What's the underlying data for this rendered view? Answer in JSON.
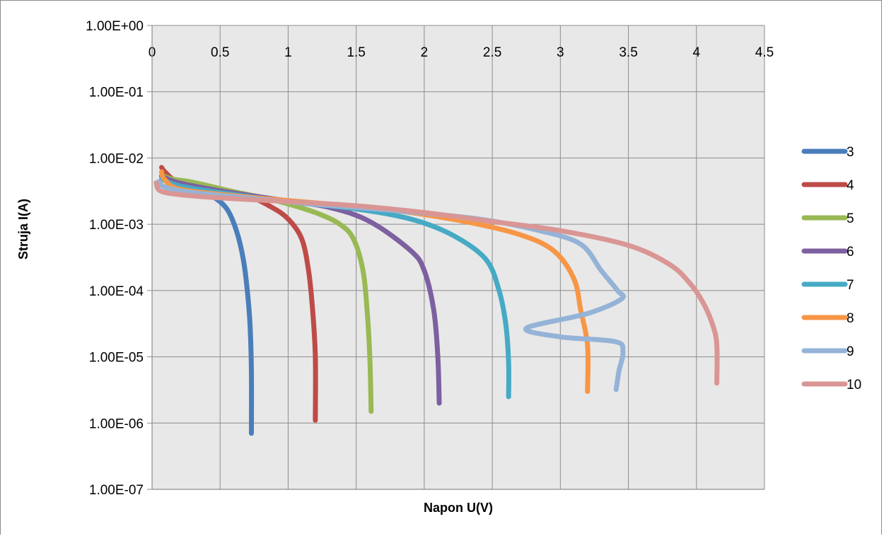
{
  "chart_data": {
    "type": "line",
    "title": "",
    "xlabel": "Napon U(V)",
    "ylabel": "Struja I(A)",
    "x_scale": "linear",
    "y_scale": "log",
    "xlim": [
      0,
      4.5
    ],
    "ylim": [
      1e-07,
      1
    ],
    "x_ticks": [
      "0",
      "0.5",
      "1",
      "1.5",
      "2",
      "2.5",
      "3",
      "3.5",
      "4",
      "4.5"
    ],
    "y_ticks": [
      "1.00E+00",
      "1.00E-01",
      "1.00E-02",
      "1.00E-03",
      "1.00E-04",
      "1.00E-05",
      "1.00E-06",
      "1.00E-07"
    ],
    "grid": true,
    "legend_position": "right",
    "series": [
      {
        "name": "3",
        "color": "#4a7ebb",
        "points": [
          [
            0.08,
            0.0058
          ],
          [
            0.1,
            0.0048
          ],
          [
            0.2,
            0.0038
          ],
          [
            0.35,
            0.0033
          ],
          [
            0.45,
            0.0026
          ],
          [
            0.55,
            0.0017
          ],
          [
            0.62,
            0.0008
          ],
          [
            0.67,
            0.0003
          ],
          [
            0.7,
            0.0001
          ],
          [
            0.72,
            3e-05
          ],
          [
            0.73,
            6e-06
          ],
          [
            0.73,
            7e-07
          ]
        ]
      },
      {
        "name": "4",
        "color": "#be4b48",
        "points": [
          [
            0.07,
            0.0072
          ],
          [
            0.1,
            0.006
          ],
          [
            0.2,
            0.0043
          ],
          [
            0.45,
            0.0035
          ],
          [
            0.7,
            0.0027
          ],
          [
            0.88,
            0.0018
          ],
          [
            1.0,
            0.0012
          ],
          [
            1.1,
            0.0006
          ],
          [
            1.15,
            0.0002
          ],
          [
            1.18,
            5e-05
          ],
          [
            1.2,
            1e-05
          ],
          [
            1.2,
            1.1e-06
          ]
        ]
      },
      {
        "name": "5",
        "color": "#98b954",
        "points": [
          [
            0.07,
            0.0055
          ],
          [
            0.15,
            0.0048
          ],
          [
            0.3,
            0.0043
          ],
          [
            0.6,
            0.0031
          ],
          [
            0.9,
            0.0023
          ],
          [
            1.2,
            0.0015
          ],
          [
            1.38,
            0.001
          ],
          [
            1.48,
            0.0006
          ],
          [
            1.55,
            0.0002
          ],
          [
            1.58,
            5e-05
          ],
          [
            1.6,
            1e-05
          ],
          [
            1.61,
            1.5e-06
          ]
        ]
      },
      {
        "name": "6",
        "color": "#7d60a0",
        "points": [
          [
            0.07,
            0.0053
          ],
          [
            0.2,
            0.0042
          ],
          [
            0.5,
            0.0032
          ],
          [
            0.9,
            0.0024
          ],
          [
            1.3,
            0.0018
          ],
          [
            1.6,
            0.0011
          ],
          [
            1.9,
            0.0004
          ],
          [
            2.0,
            0.0002
          ],
          [
            2.07,
            5e-05
          ],
          [
            2.1,
            1e-05
          ],
          [
            2.11,
            2e-06
          ]
        ]
      },
      {
        "name": "7",
        "color": "#46aac5",
        "points": [
          [
            0.07,
            0.0048
          ],
          [
            0.2,
            0.0038
          ],
          [
            0.5,
            0.003
          ],
          [
            1.0,
            0.0022
          ],
          [
            1.5,
            0.0017
          ],
          [
            1.9,
            0.0012
          ],
          [
            2.2,
            0.0007
          ],
          [
            2.45,
            0.0003
          ],
          [
            2.55,
            0.0001
          ],
          [
            2.6,
            3e-05
          ],
          [
            2.62,
            8e-06
          ],
          [
            2.62,
            2.5e-06
          ]
        ]
      },
      {
        "name": "8",
        "color": "#f79646",
        "points": [
          [
            0.07,
            0.0062
          ],
          [
            0.09,
            0.0048
          ],
          [
            0.2,
            0.0034
          ],
          [
            0.6,
            0.0027
          ],
          [
            1.2,
            0.0021
          ],
          [
            1.8,
            0.0016
          ],
          [
            2.3,
            0.0011
          ],
          [
            2.7,
            0.0007
          ],
          [
            2.95,
            0.0004
          ],
          [
            3.1,
            0.00015
          ],
          [
            3.15,
            5e-05
          ],
          [
            3.2,
            1.5e-05
          ],
          [
            3.2,
            3e-06
          ]
        ]
      },
      {
        "name": "9",
        "color": "#95b3d7",
        "points": [
          [
            0.05,
            0.0044
          ],
          [
            0.1,
            0.0036
          ],
          [
            0.3,
            0.003
          ],
          [
            0.7,
            0.0025
          ],
          [
            1.2,
            0.002
          ],
          [
            1.8,
            0.0016
          ],
          [
            2.4,
            0.0012
          ],
          [
            2.85,
            0.0008
          ],
          [
            3.15,
            0.0005
          ],
          [
            3.3,
            0.0002
          ],
          [
            3.42,
            0.0001
          ],
          [
            3.45,
            7.5e-05
          ],
          [
            3.2,
            4.5e-05
          ],
          [
            2.75,
            2.7e-05
          ],
          [
            3.0,
            2e-05
          ],
          [
            3.4,
            1.7e-05
          ],
          [
            3.46,
            1.2e-05
          ],
          [
            3.43,
            6e-06
          ],
          [
            3.41,
            3.2e-06
          ]
        ]
      },
      {
        "name": "10",
        "color": "#d99694",
        "points": [
          [
            0.03,
            0.0042
          ],
          [
            0.06,
            0.0032
          ],
          [
            0.2,
            0.0028
          ],
          [
            0.5,
            0.0025
          ],
          [
            1.0,
            0.0022
          ],
          [
            1.5,
            0.0019
          ],
          [
            2.0,
            0.0015
          ],
          [
            2.5,
            0.0011
          ],
          [
            3.0,
            0.0008
          ],
          [
            3.5,
            0.00048
          ],
          [
            3.8,
            0.00025
          ],
          [
            3.95,
            0.00013
          ],
          [
            4.05,
            6.5e-05
          ],
          [
            4.12,
            3e-05
          ],
          [
            4.15,
            1.5e-05
          ],
          [
            4.15,
            4e-06
          ]
        ]
      }
    ]
  }
}
